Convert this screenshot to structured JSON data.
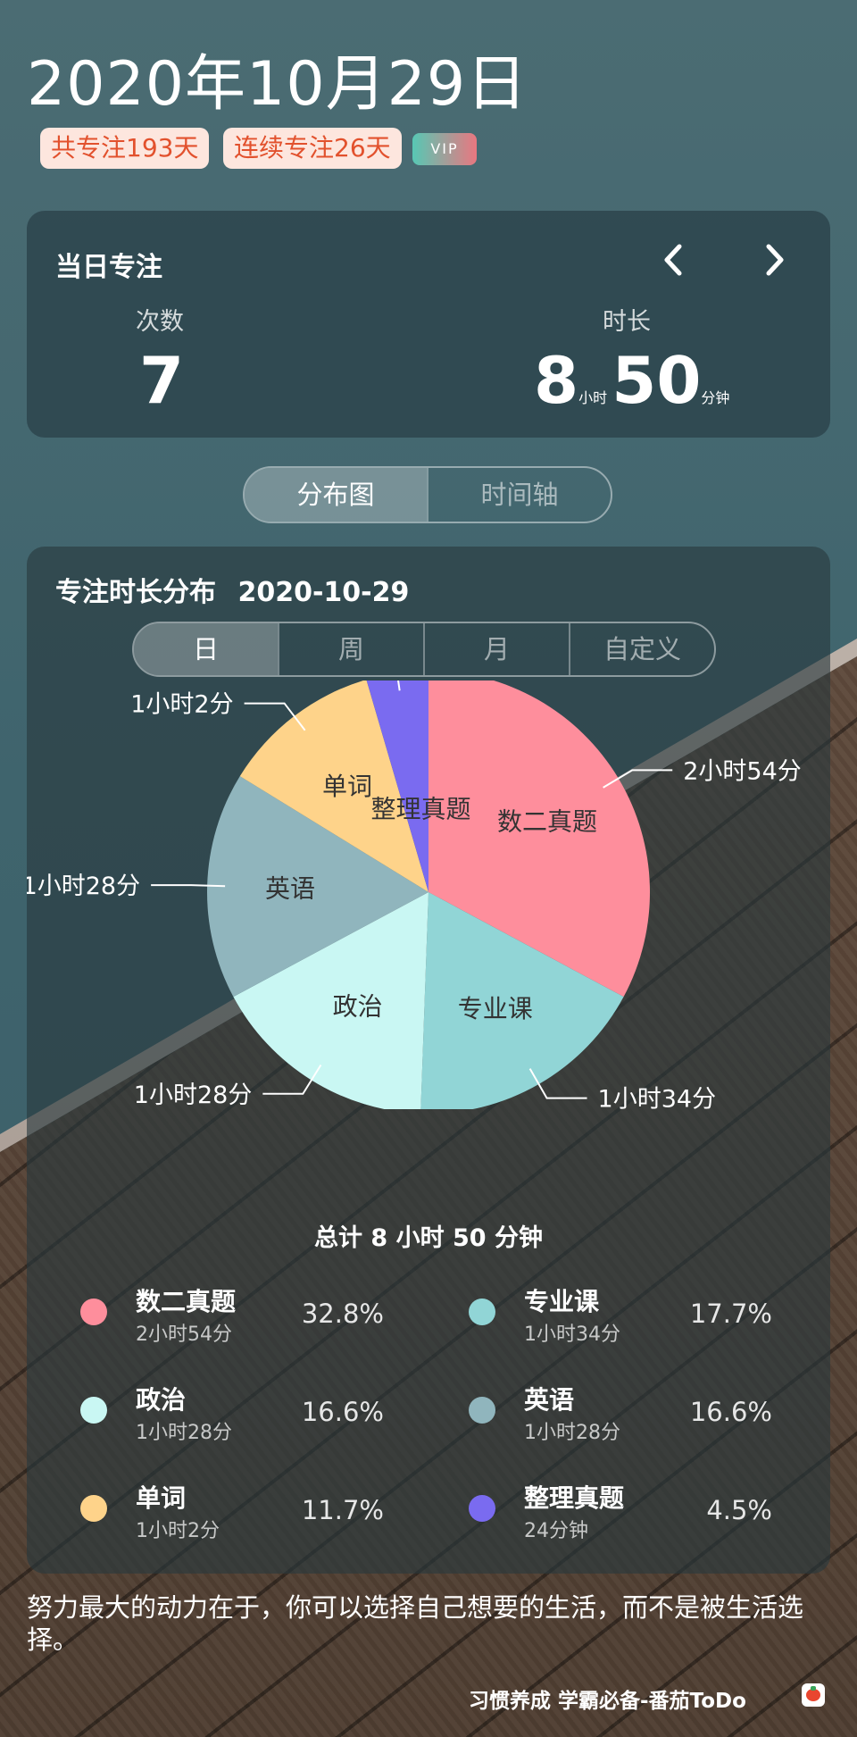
{
  "header": {
    "date": "2020年10月29日",
    "badge_total": "共专注193天",
    "badge_streak": "连续专注26天",
    "vip": "VIP"
  },
  "daily": {
    "title": "当日专注",
    "prev_icon": "chevron-left-icon",
    "next_icon": "chevron-right-icon",
    "count_label": "次数",
    "count_value": "7",
    "duration_label": "时长",
    "hours": "8",
    "hours_unit": "小时",
    "minutes": "50",
    "minutes_unit": "分钟"
  },
  "view_tabs": [
    "分布图",
    "时间轴"
  ],
  "distribution": {
    "title": "专注时长分布",
    "date": "2020-10-29",
    "range_tabs": [
      "日",
      "周",
      "月",
      "自定义"
    ],
    "total": "总计 8 小时 50 分钟"
  },
  "chart_data": {
    "type": "pie",
    "unit": "minutes",
    "slices": [
      {
        "name": "数二真题",
        "value": 174,
        "label": "2小时54分",
        "percent": "32.8%",
        "color": "#fe8e9c"
      },
      {
        "name": "专业课",
        "value": 94,
        "label": "1小时34分",
        "percent": "17.7%",
        "color": "#91d5d6"
      },
      {
        "name": "政治",
        "value": 88,
        "label": "1小时28分",
        "percent": "16.6%",
        "color": "#c9f7f3"
      },
      {
        "name": "英语",
        "value": 88,
        "label": "1小时28分",
        "percent": "16.6%",
        "color": "#90b5bd"
      },
      {
        "name": "单词",
        "value": 62,
        "label": "1小时2分",
        "percent": "11.7%",
        "color": "#fed38a"
      },
      {
        "name": "整理真题",
        "value": 24,
        "label": "24分钟",
        "percent": "4.5%",
        "color": "#7a6bf0"
      }
    ]
  },
  "quote": "努力最大的动力在于，你可以选择自己想要的生活，而不是被生活选择。",
  "footer": {
    "slogan": "习惯养成 学霸必备-番茄ToDo",
    "logo_icon": "tomato-icon"
  }
}
